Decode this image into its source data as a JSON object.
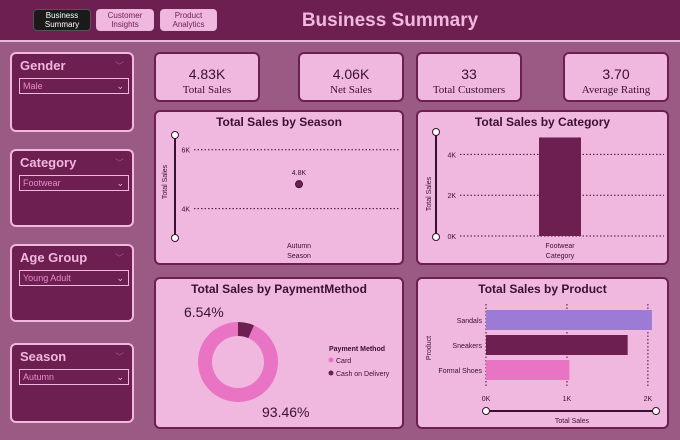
{
  "nav": {
    "title": "Business Summary",
    "buttons": [
      "Business\nSummary",
      "Customer\nInsights",
      "Product\nAnalytics"
    ]
  },
  "filters": [
    {
      "label": "Gender",
      "value": "Male"
    },
    {
      "label": "Category",
      "value": "Footwear"
    },
    {
      "label": "Age Group",
      "value": "Young Adult"
    },
    {
      "label": "Season",
      "value": "Autumn"
    }
  ],
  "kpis": [
    {
      "value": "4.83K",
      "label": "Total Sales"
    },
    {
      "value": "4.06K",
      "label": "Net Sales"
    },
    {
      "value": "33",
      "label": "Total Customers"
    },
    {
      "value": "3.70",
      "label": "Average Rating"
    }
  ],
  "colors": {
    "accent": "#6e1f52",
    "pink": "#f0b7df",
    "bg": "#9a5a83",
    "donut_card": "#e874c3",
    "bar_purple": "#9b7bd6",
    "bar_pink": "#e874c3"
  },
  "chart_data": [
    {
      "type": "scatter",
      "title": "Total Sales by Season",
      "xlabel": "Season",
      "ylabel": "Total Sales",
      "categories": [
        "Autumn"
      ],
      "values": [
        4830
      ],
      "data_labels": [
        "4.8K"
      ],
      "y_ticks": [
        "6K",
        "4K"
      ],
      "ylim": [
        3000,
        6500
      ]
    },
    {
      "type": "bar",
      "title": "Total Sales by Category",
      "xlabel": "Category",
      "ylabel": "Total Sales",
      "categories": [
        "Footwear"
      ],
      "values": [
        4830
      ],
      "y_ticks": [
        "4K",
        "2K",
        "0K"
      ],
      "ylim": [
        0,
        5000
      ]
    },
    {
      "type": "pie",
      "title": "Total Sales by PaymentMethod",
      "legend_title": "Payment Method",
      "labels": [
        "Card",
        "Cash on Delivery"
      ],
      "values": [
        93.46,
        6.54
      ],
      "data_labels": [
        "93.46%",
        "6.54%"
      ],
      "legend": "right"
    },
    {
      "type": "bar",
      "title": "Total Sales by Product",
      "xlabel": "Total Sales",
      "ylabel": "Product",
      "categories": [
        "Sandals",
        "Sneakers",
        "Formal Shoes"
      ],
      "values": [
        2050,
        1750,
        1030
      ],
      "x_ticks": [
        "0K",
        "1K",
        "2K"
      ],
      "xlim": [
        0,
        2100
      ]
    }
  ]
}
